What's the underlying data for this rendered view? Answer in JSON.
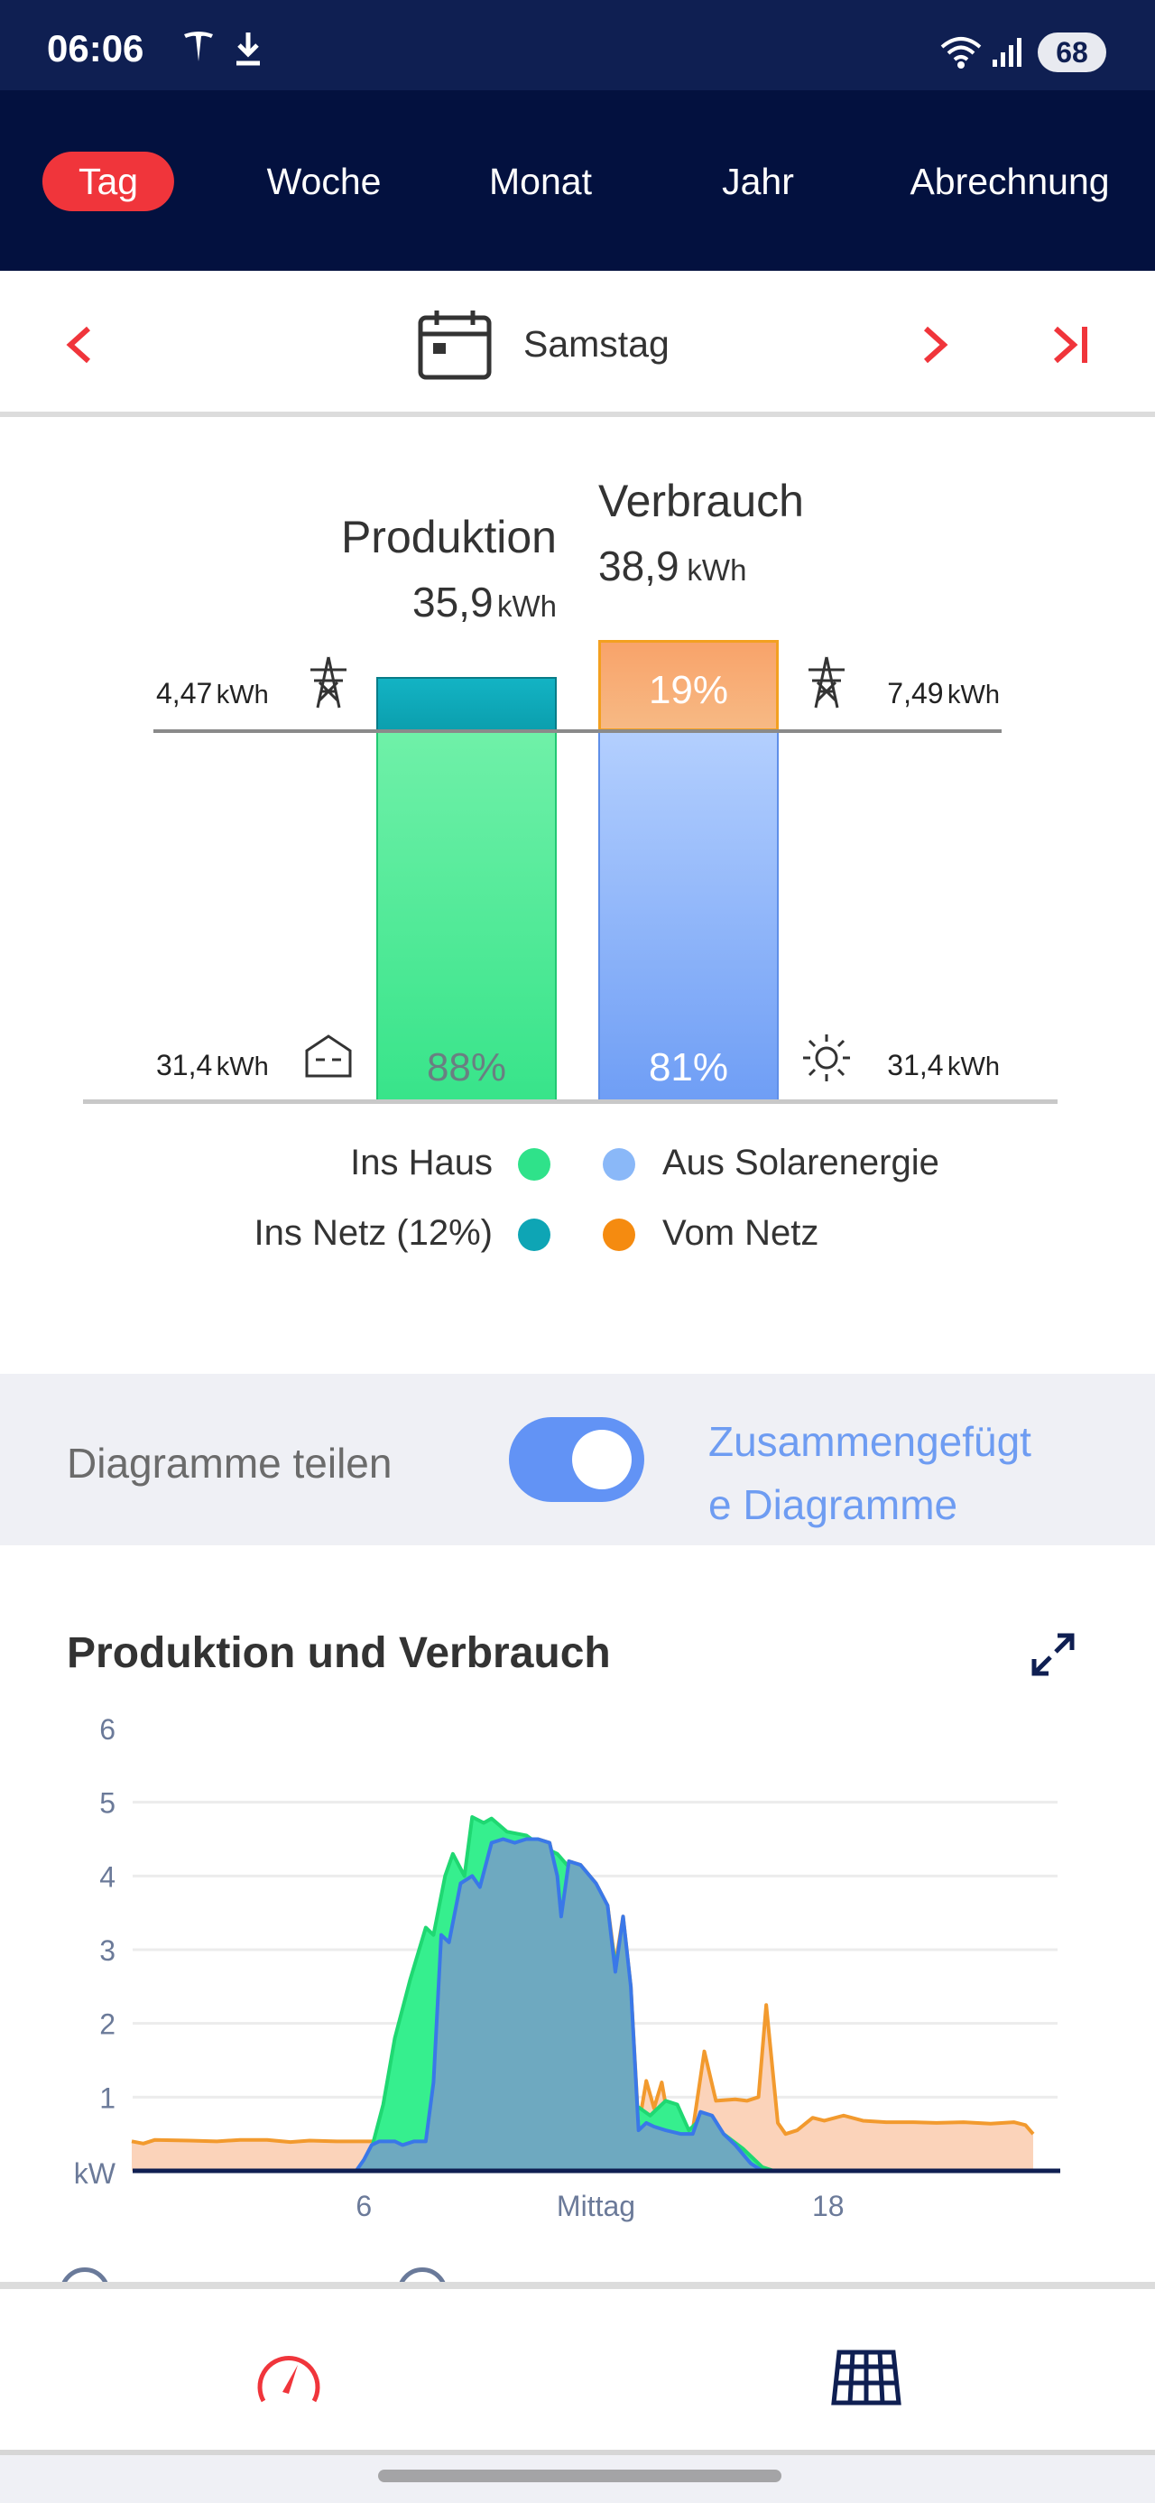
{
  "status_bar": {
    "time": "06:06",
    "battery": "68"
  },
  "tabs": [
    {
      "label": "Tag",
      "active": true
    },
    {
      "label": "Woche"
    },
    {
      "label": "Monat"
    },
    {
      "label": "Jahr"
    },
    {
      "label": "Abrechnung"
    }
  ],
  "date": {
    "label": "Samstag"
  },
  "summary": {
    "production": {
      "title": "Produktion",
      "value": "35,9",
      "unit": "kWh",
      "to_grid": "4,47",
      "to_house": "31,4",
      "to_house_pct": "88%"
    },
    "consumption": {
      "title": "Verbrauch",
      "value": "38,9",
      "unit": "kWh",
      "from_grid": "7,49",
      "from_solar": "31,4",
      "from_grid_pct": "19%",
      "from_solar_pct": "81%"
    },
    "unit": "kWh",
    "legend": [
      {
        "label": "Ins Haus",
        "color": "#2fe28a"
      },
      {
        "label": "Aus Solarenergie",
        "color": "#8ab8f8"
      },
      {
        "label": "Ins Netz (12%)",
        "color": "#0ea5b5"
      },
      {
        "label": "Vom Netz",
        "color": "#f58b10"
      }
    ]
  },
  "split": {
    "label": "Diagramme teilen",
    "on": true,
    "link": "Zusammengefügt\ne Diagramme",
    "link_line1": "Zusammengefügt",
    "link_line2": "e Diagramme"
  },
  "chart_data": {
    "type": "area",
    "title": "Produktion und Verbrauch",
    "ylabel": "kW",
    "ylim": [
      0,
      6
    ],
    "yticks": [
      "6",
      "5",
      "4",
      "3",
      "2",
      "1"
    ],
    "xlim": [
      0,
      23.7
    ],
    "xticks": [
      {
        "x": 6,
        "label": "6"
      },
      {
        "x": 12,
        "label": "Mittag"
      },
      {
        "x": 18,
        "label": "18"
      }
    ],
    "series": [
      {
        "name": "Verbrauch",
        "color": "#f29a2e",
        "fill": "#fbd3ba",
        "points": [
          [
            0,
            0.4
          ],
          [
            0.3,
            0.37
          ],
          [
            0.6,
            0.42
          ],
          [
            1.5,
            0.41
          ],
          [
            2.2,
            0.4
          ],
          [
            2.8,
            0.42
          ],
          [
            3.5,
            0.42
          ],
          [
            4.1,
            0.39
          ],
          [
            4.6,
            0.41
          ],
          [
            5.3,
            0.4
          ],
          [
            5.8,
            0.4
          ],
          [
            6.3,
            0.4
          ],
          [
            7.6,
            0.4
          ],
          [
            7.8,
            1.2
          ],
          [
            8.0,
            3.2
          ],
          [
            8.2,
            3.1
          ],
          [
            8.5,
            3.9
          ],
          [
            8.8,
            4.0
          ],
          [
            9.0,
            3.85
          ],
          [
            9.3,
            4.45
          ],
          [
            9.6,
            4.5
          ],
          [
            9.9,
            4.45
          ],
          [
            10.2,
            4.5
          ],
          [
            10.5,
            4.5
          ],
          [
            10.8,
            4.45
          ],
          [
            11.0,
            4.0
          ],
          [
            11.1,
            3.45
          ],
          [
            11.3,
            4.2
          ],
          [
            11.6,
            4.15
          ],
          [
            12.0,
            3.9
          ],
          [
            12.3,
            3.6
          ],
          [
            12.5,
            2.8
          ],
          [
            12.7,
            3.45
          ],
          [
            12.9,
            2.5
          ],
          [
            13.1,
            0.6
          ],
          [
            13.3,
            1.22
          ],
          [
            13.5,
            0.85
          ],
          [
            13.7,
            1.2
          ],
          [
            13.9,
            0.6
          ],
          [
            14.5,
            0.55
          ],
          [
            14.8,
            1.62
          ],
          [
            15.1,
            0.95
          ],
          [
            15.6,
            0.97
          ],
          [
            15.9,
            0.95
          ],
          [
            16.2,
            1.0
          ],
          [
            16.4,
            2.25
          ],
          [
            16.7,
            0.65
          ],
          [
            16.9,
            0.5
          ],
          [
            17.2,
            0.55
          ],
          [
            17.6,
            0.72
          ],
          [
            17.9,
            0.68
          ],
          [
            18.4,
            0.75
          ],
          [
            18.9,
            0.68
          ],
          [
            19.5,
            0.66
          ],
          [
            20.2,
            0.66
          ],
          [
            20.8,
            0.65
          ],
          [
            21.5,
            0.66
          ],
          [
            22.2,
            0.64
          ],
          [
            22.8,
            0.66
          ],
          [
            23.1,
            0.62
          ],
          [
            23.3,
            0.5
          ]
        ]
      },
      {
        "name": "Produktion",
        "color": "#1fd872",
        "fill": "#36ef8e",
        "points": [
          [
            5.9,
            0
          ],
          [
            6.2,
            0.3
          ],
          [
            6.5,
            0.9
          ],
          [
            6.8,
            1.8
          ],
          [
            7.2,
            2.6
          ],
          [
            7.6,
            3.3
          ],
          [
            7.8,
            3.2
          ],
          [
            8.1,
            4.0
          ],
          [
            8.3,
            4.3
          ],
          [
            8.6,
            4.0
          ],
          [
            8.8,
            4.8
          ],
          [
            9.1,
            4.72
          ],
          [
            9.3,
            4.78
          ],
          [
            9.7,
            4.6
          ],
          [
            10.2,
            4.55
          ],
          [
            10.6,
            4.4
          ],
          [
            11.0,
            4.3
          ],
          [
            11.5,
            4.0
          ],
          [
            11.8,
            3.7
          ],
          [
            12.1,
            3.5
          ],
          [
            12.3,
            3.45
          ],
          [
            12.6,
            2.5
          ],
          [
            12.8,
            1.0
          ],
          [
            13.0,
            0.9
          ],
          [
            13.4,
            0.75
          ],
          [
            13.8,
            0.95
          ],
          [
            14.1,
            0.9
          ],
          [
            14.4,
            0.55
          ],
          [
            14.8,
            0.75
          ],
          [
            15.0,
            0.7
          ],
          [
            15.3,
            0.5
          ],
          [
            15.8,
            0.3
          ],
          [
            16.3,
            0.05
          ],
          [
            16.6,
            0
          ]
        ]
      },
      {
        "name": "Aus Solarenergie",
        "color": "#3a78e8",
        "fill": "#6ea9c0",
        "points": [
          [
            5.8,
            0
          ],
          [
            6.0,
            0.15
          ],
          [
            6.2,
            0.35
          ],
          [
            6.4,
            0.4
          ],
          [
            6.8,
            0.4
          ],
          [
            7.0,
            0.35
          ],
          [
            7.3,
            0.4
          ],
          [
            7.6,
            0.4
          ],
          [
            7.8,
            1.2
          ],
          [
            8.0,
            3.2
          ],
          [
            8.2,
            3.1
          ],
          [
            8.5,
            3.9
          ],
          [
            8.8,
            4.0
          ],
          [
            9.0,
            3.85
          ],
          [
            9.3,
            4.45
          ],
          [
            9.6,
            4.5
          ],
          [
            9.9,
            4.45
          ],
          [
            10.2,
            4.5
          ],
          [
            10.5,
            4.5
          ],
          [
            10.8,
            4.45
          ],
          [
            11.0,
            4.0
          ],
          [
            11.1,
            3.45
          ],
          [
            11.3,
            4.2
          ],
          [
            11.6,
            4.15
          ],
          [
            12.0,
            3.9
          ],
          [
            12.3,
            3.6
          ],
          [
            12.5,
            2.7
          ],
          [
            12.7,
            3.45
          ],
          [
            12.9,
            2.5
          ],
          [
            13.1,
            0.55
          ],
          [
            13.3,
            0.65
          ],
          [
            13.5,
            0.6
          ],
          [
            13.8,
            0.55
          ],
          [
            14.2,
            0.5
          ],
          [
            14.5,
            0.5
          ],
          [
            14.7,
            0.8
          ],
          [
            15.0,
            0.75
          ],
          [
            15.3,
            0.5
          ],
          [
            15.6,
            0.35
          ],
          [
            16.0,
            0.1
          ],
          [
            16.3,
            0
          ]
        ]
      }
    ]
  }
}
